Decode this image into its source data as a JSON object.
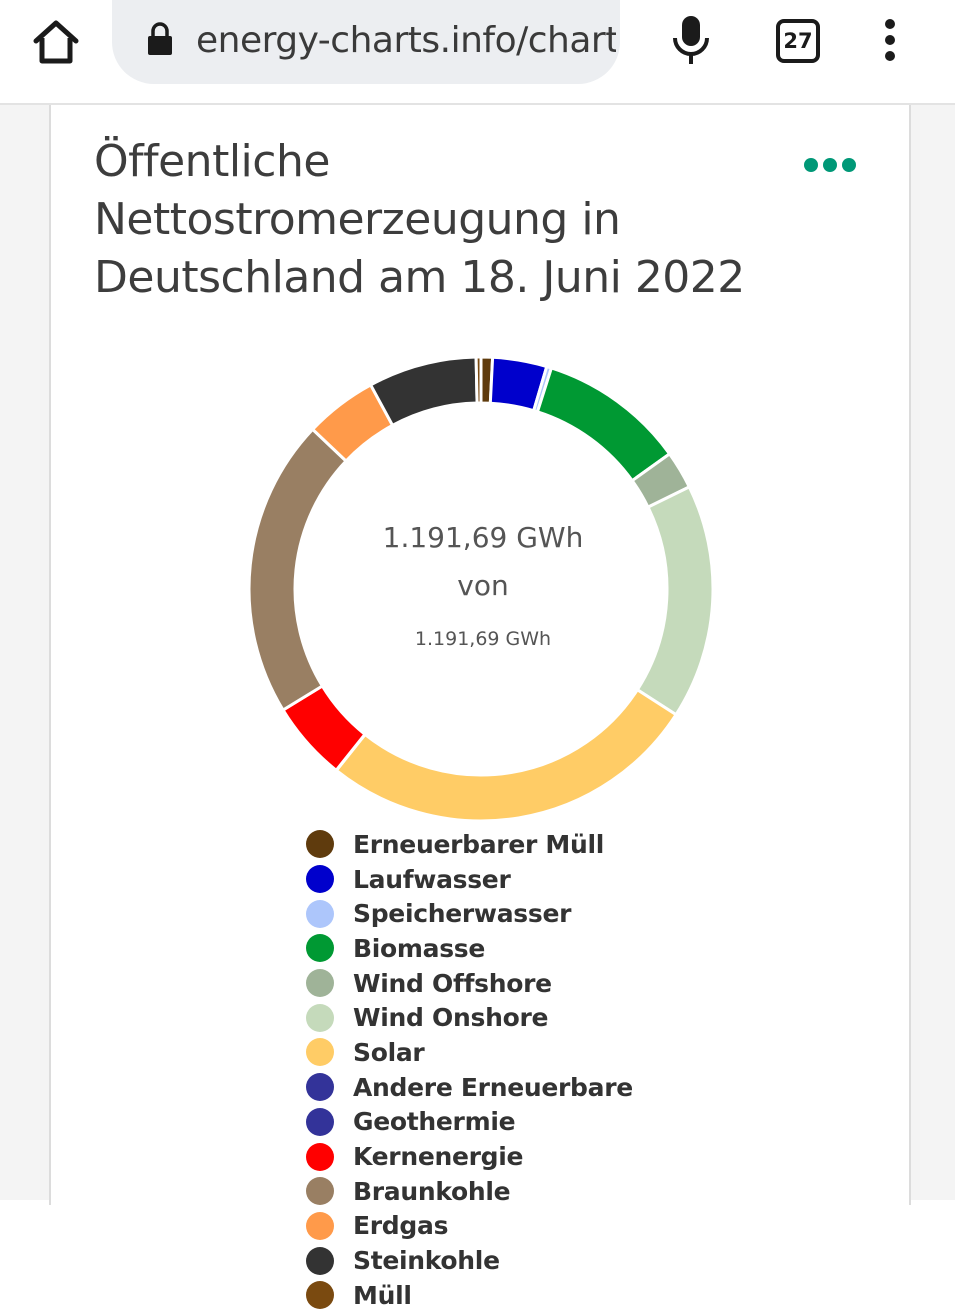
{
  "browser": {
    "url": "energy-charts.info/charts",
    "tab_count": "27",
    "icons": {
      "home": "home-icon",
      "lock": "lock-icon",
      "mic": "mic-icon",
      "menu": "more-vert-icon"
    }
  },
  "card": {
    "menu_icon": "more-horiz-icon",
    "menu_color": "#009877"
  },
  "chart_data": {
    "type": "pie",
    "variant": "donut",
    "title": "Öffentliche Nettostromerzeugung in Deutschland am 18. Juni 2022",
    "unit": "GWh",
    "center_value": "1.191,69 GWh",
    "center_connector": "von",
    "center_total": "1.191,69 GWh",
    "legend_placement": "bottom",
    "series": [
      {
        "name": "Erneuerbarer Müll",
        "value": 9.5,
        "color": "#5f3b0d"
      },
      {
        "name": "Laufwasser",
        "value": 45.0,
        "color": "#0000cc"
      },
      {
        "name": "Speicherwasser",
        "value": 4.0,
        "color": "#adc6fb"
      },
      {
        "name": "Biomasse",
        "value": 121.5,
        "color": "#009933"
      },
      {
        "name": "Wind Offshore",
        "value": 31.5,
        "color": "#9fb398"
      },
      {
        "name": "Wind Onshore",
        "value": 195.0,
        "color": "#c5dabb"
      },
      {
        "name": "Solar",
        "value": 317.0,
        "color": "#ffcc66"
      },
      {
        "name": "Andere Erneuerbare",
        "value": 0.1,
        "color": "#333399"
      },
      {
        "name": "Geothermie",
        "value": 0.1,
        "color": "#333399"
      },
      {
        "name": "Kernenergie",
        "value": 66.0,
        "color": "#ff0000"
      },
      {
        "name": "Braunkohle",
        "value": 248.0,
        "color": "#997f63"
      },
      {
        "name": "Erdgas",
        "value": 60.0,
        "color": "#ff9a4a"
      },
      {
        "name": "Steinkohle",
        "value": 90.0,
        "color": "#333333"
      },
      {
        "name": "Müll",
        "value": 4.0,
        "color": "#7a4a10"
      }
    ]
  }
}
